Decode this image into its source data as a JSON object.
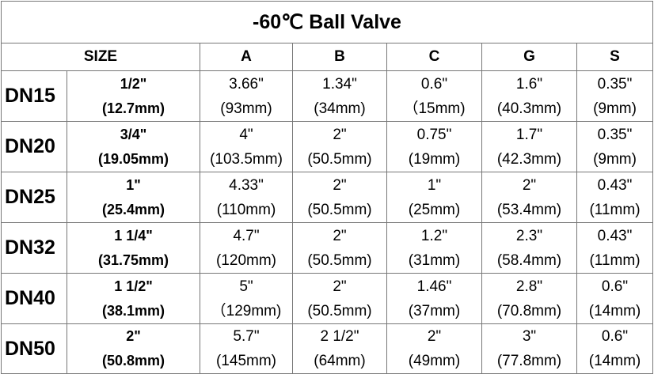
{
  "title": "-60℃ Ball Valve",
  "header": {
    "size": "SIZE",
    "columns": [
      "A",
      "B",
      "C",
      "G",
      "S"
    ]
  },
  "table": {
    "rows": [
      {
        "dn": "DN15",
        "cells": [
          [
            "1/2\"",
            "(12.7mm)"
          ],
          [
            "3.66\"",
            "(93mm)"
          ],
          [
            "1.34\"",
            "(34mm)"
          ],
          [
            "0.6\"",
            "（15mm)"
          ],
          [
            "1.6\"",
            "(40.3mm)"
          ],
          [
            "0.35\"",
            "(9mm)"
          ]
        ]
      },
      {
        "dn": "DN20",
        "cells": [
          [
            "3/4\"",
            "(19.05mm)"
          ],
          [
            "4\"",
            "(103.5mm)"
          ],
          [
            "2\"",
            "(50.5mm)"
          ],
          [
            "0.75\"",
            "(19mm)"
          ],
          [
            "1.7\"",
            "(42.3mm)"
          ],
          [
            "0.35\"",
            "(9mm)"
          ]
        ]
      },
      {
        "dn": "DN25",
        "cells": [
          [
            "1\"",
            "(25.4mm)"
          ],
          [
            "4.33\"",
            "(110mm)"
          ],
          [
            "2\"",
            "(50.5mm)"
          ],
          [
            "1\"",
            "(25mm)"
          ],
          [
            "2\"",
            "(53.4mm)"
          ],
          [
            "0.43\"",
            "(11mm)"
          ]
        ]
      },
      {
        "dn": "DN32",
        "cells": [
          [
            "1 1/4\"",
            "(31.75mm)"
          ],
          [
            "4.7\"",
            "(120mm)"
          ],
          [
            "2\"",
            "(50.5mm)"
          ],
          [
            "1.2\"",
            "(31mm)"
          ],
          [
            "2.3\"",
            "(58.4mm)"
          ],
          [
            "0.43\"",
            "(11mm)"
          ]
        ]
      },
      {
        "dn": "DN40",
        "cells": [
          [
            "1 1/2\"",
            "(38.1mm)"
          ],
          [
            "5\"",
            "（129mm)"
          ],
          [
            "2\"",
            "(50.5mm)"
          ],
          [
            "1.46\"",
            "(37mm)"
          ],
          [
            "2.8\"",
            "(70.8mm)"
          ],
          [
            "0.6\"",
            "(14mm)"
          ]
        ]
      },
      {
        "dn": "DN50",
        "cells": [
          [
            "2\"",
            "(50.8mm)"
          ],
          [
            "5.7\"",
            "(145mm)"
          ],
          [
            "2 1/2\"",
            "(64mm)"
          ],
          [
            "2\"",
            "(49mm)"
          ],
          [
            "3\"",
            "(77.8mm)"
          ],
          [
            "0.6\"",
            "(14mm)"
          ]
        ]
      }
    ]
  }
}
